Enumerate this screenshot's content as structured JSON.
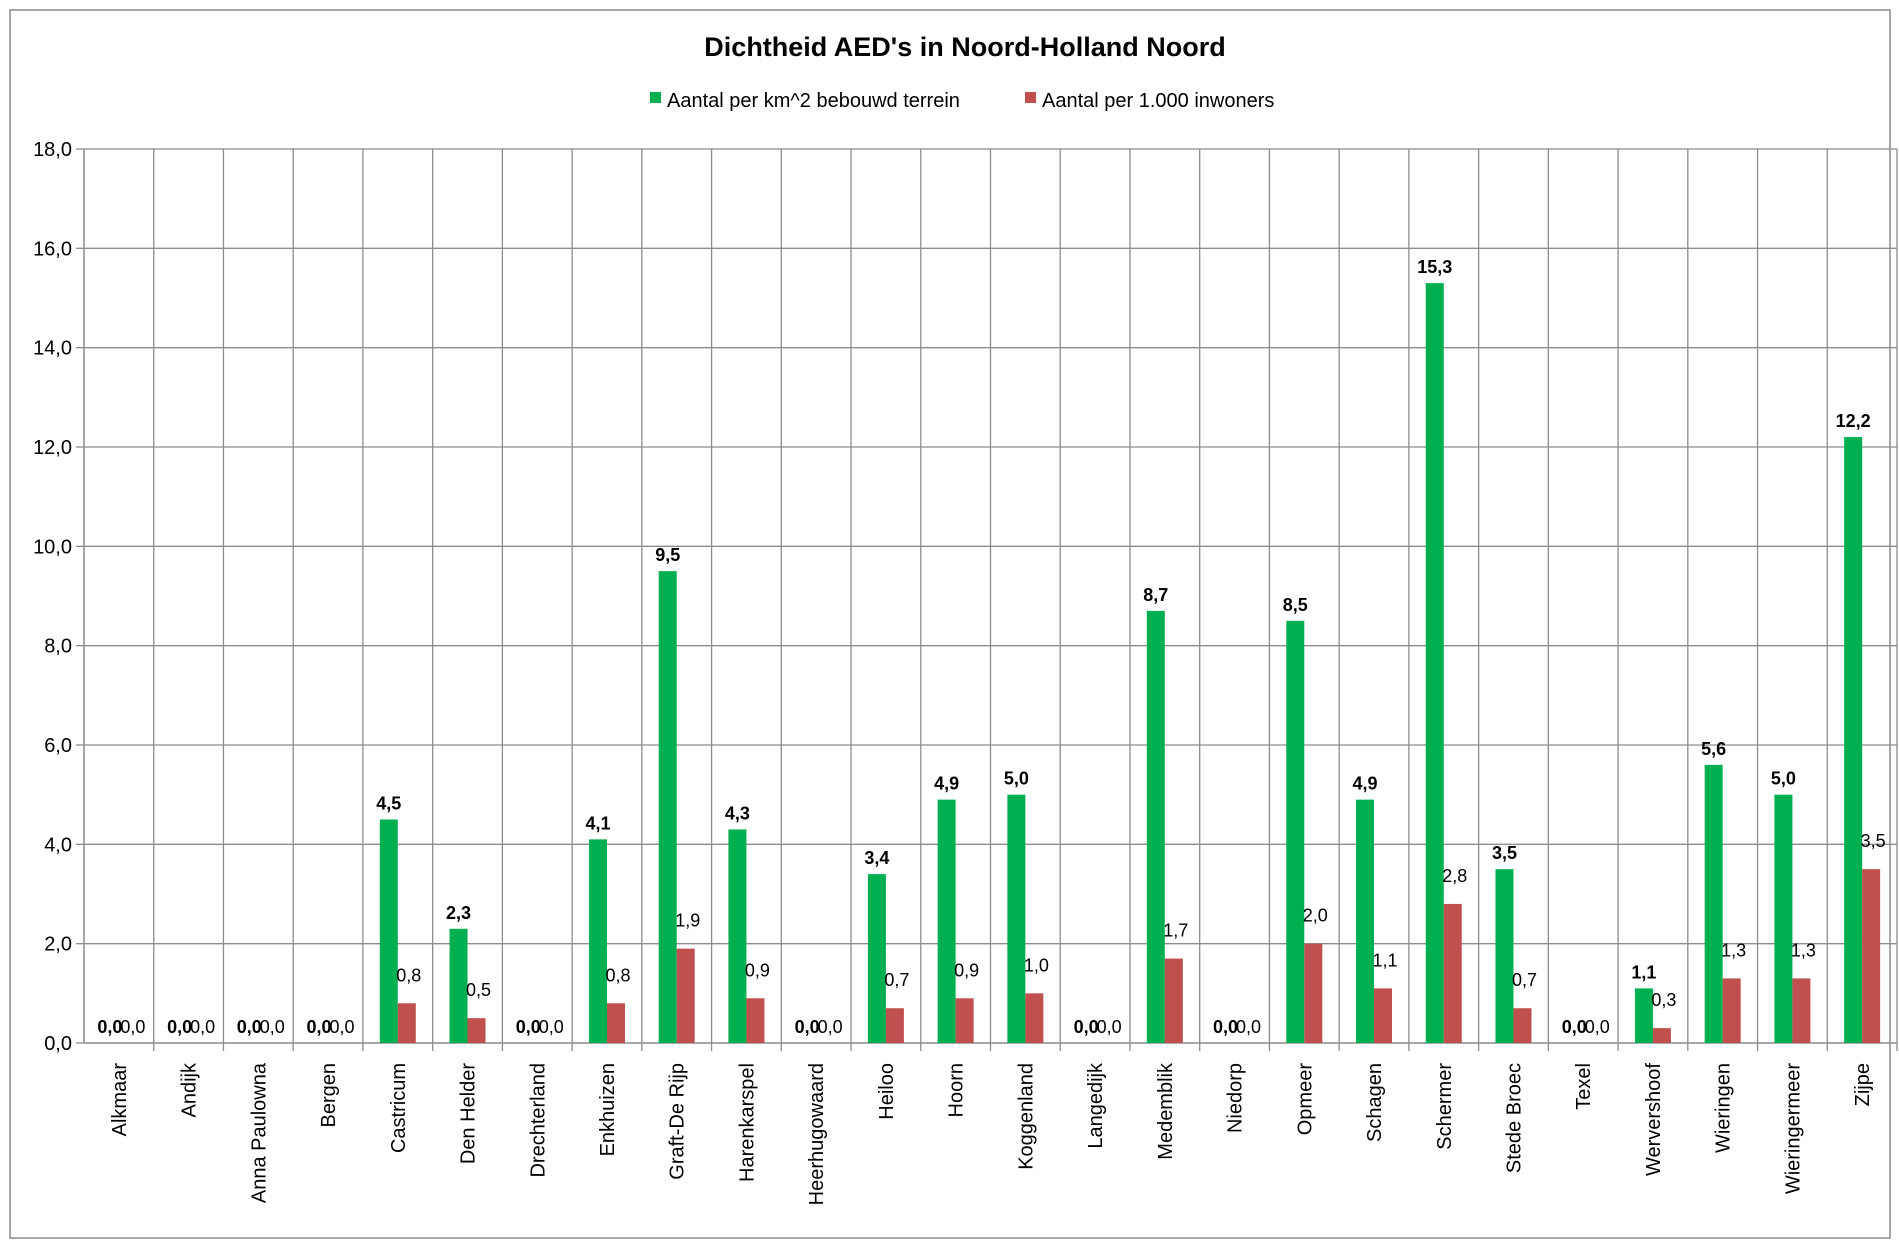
{
  "chart_data": {
    "type": "bar",
    "title": "Dichtheid AED's in Noord-Holland Noord",
    "xlabel": "",
    "ylabel": "",
    "ylim": [
      0,
      18
    ],
    "yticks": [
      "0,0",
      "2,0",
      "4,0",
      "6,0",
      "8,0",
      "10,0",
      "12,0",
      "14,0",
      "16,0",
      "18,0"
    ],
    "grid": true,
    "legend_position": "top",
    "categories": [
      "Alkmaar",
      "Andijk",
      "Anna Paulowna",
      "Bergen",
      "Castricum",
      "Den Helder",
      "Drechterland",
      "Enkhuizen",
      "Graft-De Rijp",
      "Harenkarspel",
      "Heerhugowaard",
      "Heiloo",
      "Hoorn",
      "Koggenland",
      "Langedijk",
      "Medemblik",
      "Niedorp",
      "Opmeer",
      "Schagen",
      "Schermer",
      "Stede Broec",
      "Texel",
      "Wervershoof",
      "Wieringen",
      "Wieringermeer",
      "Zijpe"
    ],
    "series": [
      {
        "name": "Aantal per km^2 bebouwd terrein",
        "color": "#00b050",
        "values": [
          0.0,
          0.0,
          0.0,
          0.0,
          4.5,
          2.3,
          0.0,
          4.1,
          9.5,
          4.3,
          0.0,
          3.4,
          4.9,
          5.0,
          0.0,
          8.7,
          0.0,
          8.5,
          4.9,
          15.3,
          3.5,
          0.0,
          1.1,
          5.6,
          5.0,
          12.2
        ],
        "labels": [
          "0,0",
          "0,0",
          "0,0",
          "0,0",
          "4,5",
          "2,3",
          "0,0",
          "4,1",
          "9,5",
          "4,3",
          "0,0",
          "3,4",
          "4,9",
          "5,0",
          "0,0",
          "8,7",
          "0,0",
          "8,5",
          "4,9",
          "15,3",
          "3,5",
          "0,0",
          "1,1",
          "5,6",
          "5,0",
          "12,2"
        ]
      },
      {
        "name": "Aantal per 1.000 inwoners",
        "color": "#c0504d",
        "values": [
          0.0,
          0.0,
          0.0,
          0.0,
          0.8,
          0.5,
          0.0,
          0.8,
          1.9,
          0.9,
          0.0,
          0.7,
          0.9,
          1.0,
          0.0,
          1.7,
          0.0,
          2.0,
          1.1,
          2.8,
          0.7,
          0.0,
          0.3,
          1.3,
          1.3,
          3.5
        ],
        "labels": [
          "0,0",
          "0,0",
          "0,0",
          "0,0",
          "0,8",
          "0,5",
          "0,0",
          "0,8",
          "1,9",
          "0,9",
          "0,0",
          "0,7",
          "0,9",
          "1,0",
          "0,0",
          "1,7",
          "0,0",
          "2,0",
          "1,1",
          "2,8",
          "0,7",
          "0,0",
          "0,3",
          "1,3",
          "1,3",
          "3,5"
        ]
      }
    ]
  }
}
